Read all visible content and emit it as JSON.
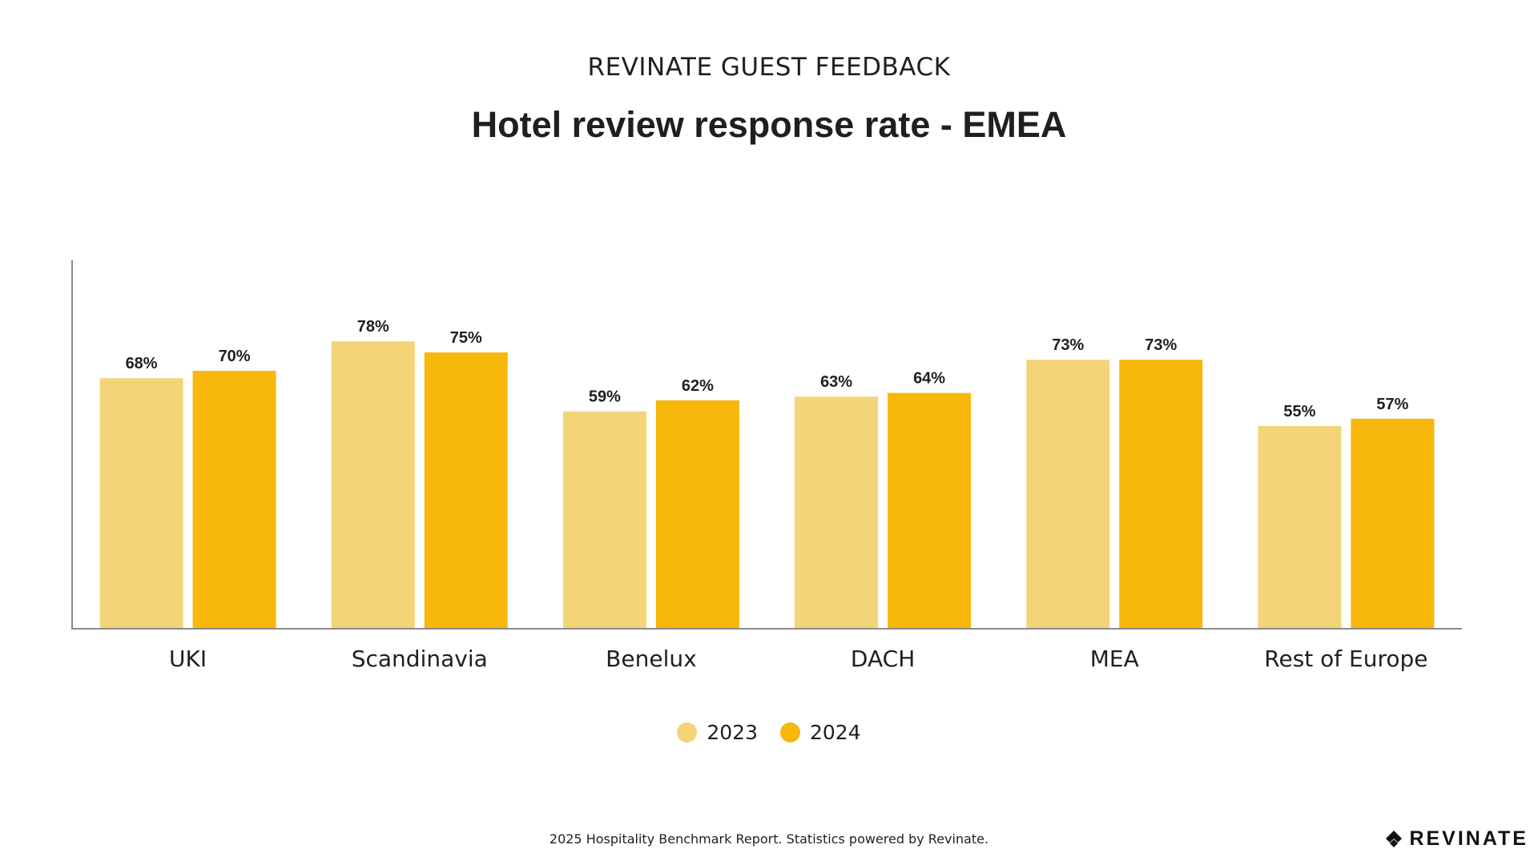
{
  "header": {
    "supertitle": "REVINATE GUEST FEEDBACK",
    "title": "Hotel review response rate - EMEA"
  },
  "chart_data": {
    "type": "bar",
    "title": "Hotel review response rate - EMEA",
    "categories": [
      "UKI",
      "Scandinavia",
      "Benelux",
      "DACH",
      "MEA",
      "Rest of Europe"
    ],
    "series": [
      {
        "name": "2023",
        "values": [
          68,
          78,
          59,
          63,
          73,
          55
        ],
        "labels": [
          "68%",
          "78%",
          "59%",
          "63%",
          "73%",
          "55%"
        ]
      },
      {
        "name": "2024",
        "values": [
          70,
          75,
          62,
          64,
          73,
          57
        ],
        "labels": [
          "70%",
          "75%",
          "62%",
          "64%",
          "73%",
          "57%"
        ]
      }
    ],
    "ylim": [
      0,
      100
    ],
    "grid": false,
    "legend": "bottom-center",
    "colors": {
      "2023": "#F3D577",
      "2024": "#F7B70B"
    }
  },
  "legend": {
    "items": [
      {
        "label": "2023",
        "color": "#F3D577"
      },
      {
        "label": "2024",
        "color": "#F7B70B"
      }
    ]
  },
  "footer": {
    "note": "2025 Hospitality Benchmark Report. Statistics powered by Revinate."
  },
  "logo": {
    "text": "REVINATE",
    "icon": "revinate-logo-icon"
  }
}
